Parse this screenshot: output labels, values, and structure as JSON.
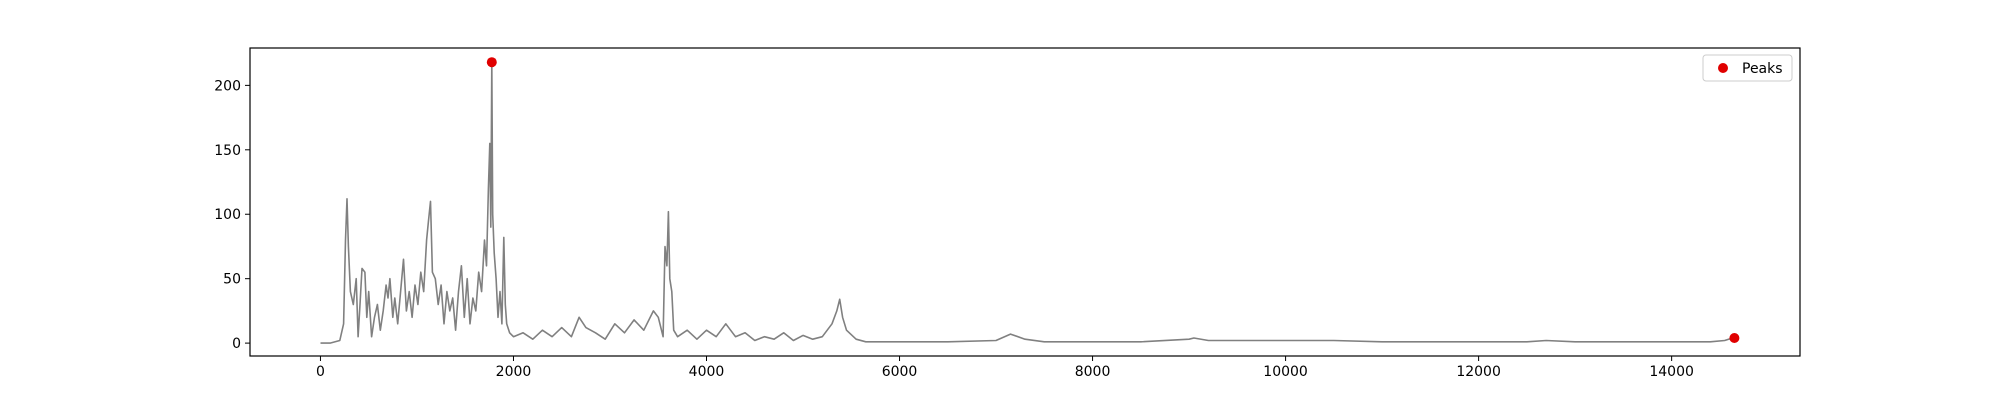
{
  "chart_data": {
    "type": "line",
    "title": "",
    "xlabel": "",
    "ylabel": "",
    "xlim": [
      -730,
      15330
    ],
    "ylim": [
      -10,
      229
    ],
    "xticks": [
      0,
      2000,
      4000,
      6000,
      8000,
      10000,
      12000,
      14000
    ],
    "yticks": [
      0,
      50,
      100,
      150,
      200
    ],
    "grid": false,
    "legend": {
      "position": "upper-right",
      "entries": [
        {
          "label": "Peaks",
          "marker": "circle",
          "color": "#e00000"
        }
      ]
    },
    "series": [
      {
        "style": "line",
        "color": "#808080",
        "points": [
          [
            0,
            0
          ],
          [
            100,
            0
          ],
          [
            200,
            2
          ],
          [
            240,
            15
          ],
          [
            260,
            80
          ],
          [
            275,
            112
          ],
          [
            290,
            75
          ],
          [
            310,
            40
          ],
          [
            340,
            30
          ],
          [
            370,
            50
          ],
          [
            390,
            5
          ],
          [
            410,
            30
          ],
          [
            430,
            58
          ],
          [
            460,
            55
          ],
          [
            480,
            20
          ],
          [
            500,
            40
          ],
          [
            530,
            5
          ],
          [
            560,
            20
          ],
          [
            590,
            30
          ],
          [
            620,
            10
          ],
          [
            650,
            25
          ],
          [
            680,
            45
          ],
          [
            700,
            35
          ],
          [
            720,
            50
          ],
          [
            750,
            20
          ],
          [
            770,
            35
          ],
          [
            800,
            15
          ],
          [
            830,
            40
          ],
          [
            860,
            65
          ],
          [
            890,
            25
          ],
          [
            920,
            40
          ],
          [
            950,
            20
          ],
          [
            980,
            45
          ],
          [
            1010,
            30
          ],
          [
            1040,
            55
          ],
          [
            1070,
            40
          ],
          [
            1100,
            80
          ],
          [
            1120,
            95
          ],
          [
            1140,
            110
          ],
          [
            1160,
            55
          ],
          [
            1190,
            50
          ],
          [
            1220,
            30
          ],
          [
            1250,
            45
          ],
          [
            1280,
            15
          ],
          [
            1310,
            40
          ],
          [
            1340,
            25
          ],
          [
            1370,
            35
          ],
          [
            1400,
            10
          ],
          [
            1430,
            40
          ],
          [
            1460,
            60
          ],
          [
            1490,
            20
          ],
          [
            1520,
            50
          ],
          [
            1550,
            15
          ],
          [
            1580,
            35
          ],
          [
            1610,
            25
          ],
          [
            1640,
            55
          ],
          [
            1670,
            40
          ],
          [
            1700,
            80
          ],
          [
            1720,
            60
          ],
          [
            1740,
            120
          ],
          [
            1755,
            155
          ],
          [
            1765,
            90
          ],
          [
            1775,
            218
          ],
          [
            1785,
            100
          ],
          [
            1800,
            70
          ],
          [
            1820,
            50
          ],
          [
            1840,
            20
          ],
          [
            1860,
            40
          ],
          [
            1880,
            15
          ],
          [
            1900,
            82
          ],
          [
            1915,
            30
          ],
          [
            1930,
            15
          ],
          [
            1960,
            8
          ],
          [
            2000,
            5
          ],
          [
            2100,
            8
          ],
          [
            2200,
            3
          ],
          [
            2300,
            10
          ],
          [
            2400,
            5
          ],
          [
            2500,
            12
          ],
          [
            2600,
            5
          ],
          [
            2680,
            20
          ],
          [
            2750,
            12
          ],
          [
            2850,
            8
          ],
          [
            2950,
            3
          ],
          [
            3050,
            15
          ],
          [
            3150,
            8
          ],
          [
            3250,
            18
          ],
          [
            3350,
            10
          ],
          [
            3450,
            25
          ],
          [
            3500,
            20
          ],
          [
            3550,
            5
          ],
          [
            3570,
            75
          ],
          [
            3590,
            60
          ],
          [
            3605,
            102
          ],
          [
            3620,
            50
          ],
          [
            3640,
            40
          ],
          [
            3660,
            10
          ],
          [
            3700,
            5
          ],
          [
            3800,
            10
          ],
          [
            3900,
            3
          ],
          [
            4000,
            10
          ],
          [
            4100,
            5
          ],
          [
            4200,
            15
          ],
          [
            4300,
            5
          ],
          [
            4400,
            8
          ],
          [
            4500,
            2
          ],
          [
            4600,
            5
          ],
          [
            4700,
            3
          ],
          [
            4800,
            8
          ],
          [
            4900,
            2
          ],
          [
            5000,
            6
          ],
          [
            5100,
            3
          ],
          [
            5200,
            5
          ],
          [
            5300,
            15
          ],
          [
            5350,
            25
          ],
          [
            5380,
            34
          ],
          [
            5410,
            20
          ],
          [
            5450,
            10
          ],
          [
            5550,
            3
          ],
          [
            5650,
            1
          ],
          [
            6000,
            1
          ],
          [
            6500,
            1
          ],
          [
            7000,
            2
          ],
          [
            7150,
            7
          ],
          [
            7300,
            3
          ],
          [
            7500,
            1
          ],
          [
            8000,
            1
          ],
          [
            8500,
            1
          ],
          [
            9000,
            3
          ],
          [
            9050,
            4
          ],
          [
            9200,
            2
          ],
          [
            9500,
            2
          ],
          [
            10000,
            2
          ],
          [
            10500,
            2
          ],
          [
            11000,
            1
          ],
          [
            11500,
            1
          ],
          [
            12000,
            1
          ],
          [
            12500,
            1
          ],
          [
            12700,
            2
          ],
          [
            13000,
            1
          ],
          [
            13500,
            1
          ],
          [
            14000,
            1
          ],
          [
            14400,
            1
          ],
          [
            14550,
            2
          ],
          [
            14630,
            4
          ],
          [
            14660,
            4
          ]
        ]
      },
      {
        "name": "Peaks",
        "style": "scatter",
        "color": "#e00000",
        "points": [
          [
            1775,
            218
          ],
          [
            14650,
            4
          ]
        ]
      }
    ]
  }
}
